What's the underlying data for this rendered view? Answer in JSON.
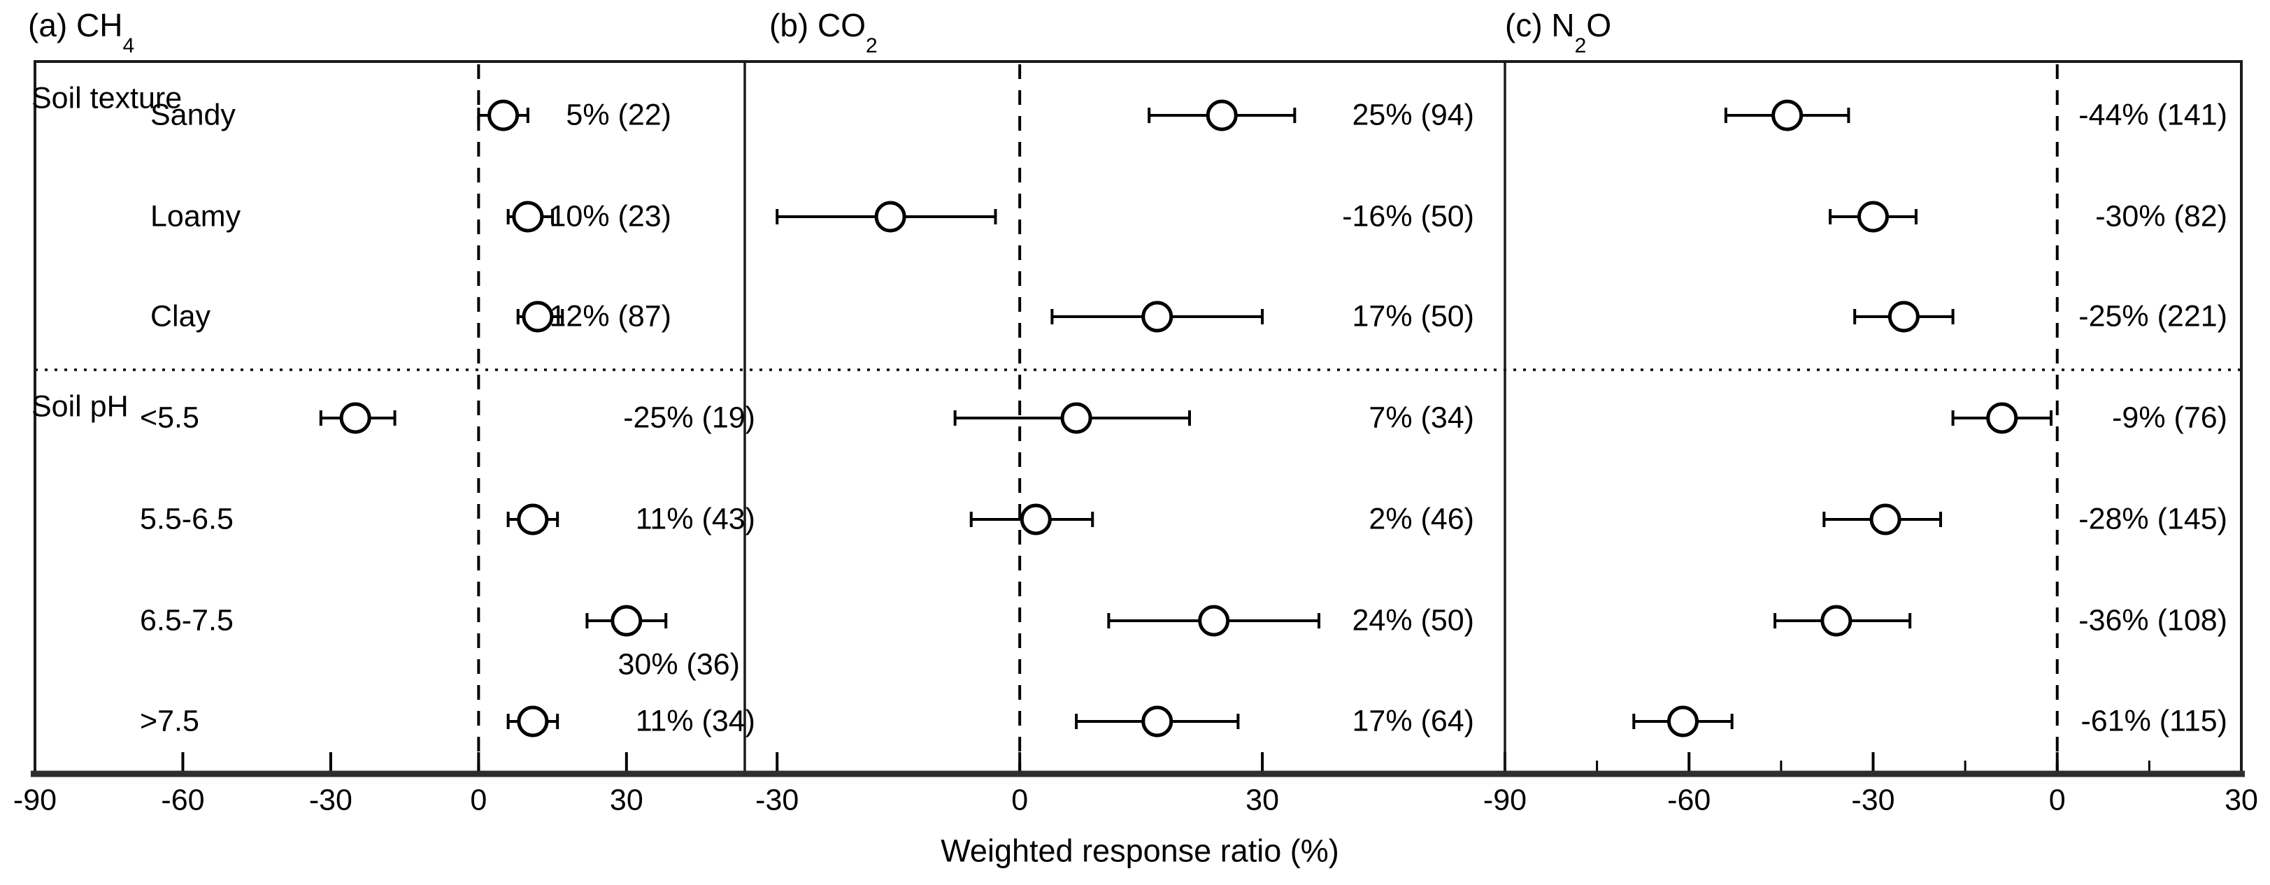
{
  "figure": {
    "xlabel": "Weighted response ratio (%)",
    "group_headers": [
      {
        "label": "Soil texture"
      },
      {
        "label": "Soil pH"
      }
    ]
  },
  "chart_data": [
    {
      "type": "scatter",
      "subtype": "forest-plot",
      "panel_label": "(a)",
      "gas": "CH4",
      "title_prefix": "(a) CH",
      "title_sub": "4",
      "title_suffix": "",
      "xlabel": "Weighted response ratio (%)",
      "xlim": [
        -90,
        54
      ],
      "ticks": [
        -90,
        -60,
        -30,
        0,
        30
      ],
      "minor_ticks": [],
      "zero_line": 0,
      "grid": false,
      "categories": [
        "Sandy",
        "Loamy",
        "Clay",
        "<5.5",
        "5.5-6.5",
        "6.5-7.5",
        ">7.5"
      ],
      "rows": [
        {
          "category": "Sandy",
          "group": "Soil texture",
          "value": 5,
          "ci": [
            0,
            10
          ],
          "n": 22,
          "label": "5% (22)"
        },
        {
          "category": "Loamy",
          "group": "Soil texture",
          "value": 10,
          "ci": [
            6,
            15
          ],
          "n": 23,
          "label": "10% (23)"
        },
        {
          "category": "Clay",
          "group": "Soil texture",
          "value": 12,
          "ci": [
            8,
            17
          ],
          "n": 87,
          "label": "12% (87)"
        },
        {
          "category": "<5.5",
          "group": "Soil pH",
          "value": -25,
          "ci": [
            -32,
            -17
          ],
          "n": 19,
          "label": "-25% (19)"
        },
        {
          "category": "5.5-6.5",
          "group": "Soil pH",
          "value": 11,
          "ci": [
            6,
            16
          ],
          "n": 43,
          "label": "11% (43)"
        },
        {
          "category": "6.5-7.5",
          "group": "Soil pH",
          "value": 30,
          "ci": [
            22,
            38
          ],
          "n": 36,
          "label": "30% (36)",
          "label_below": true
        },
        {
          "category": ">7.5",
          "group": "Soil pH",
          "value": 11,
          "ci": [
            6,
            16
          ],
          "n": 34,
          "label": "11% (34)"
        }
      ]
    },
    {
      "type": "scatter",
      "subtype": "forest-plot",
      "panel_label": "(b)",
      "gas": "CO2",
      "title_prefix": "(b) CO",
      "title_sub": "2",
      "title_suffix": "",
      "xlabel": "Weighted response ratio (%)",
      "xlim": [
        -34,
        60
      ],
      "ticks": [
        -30,
        0,
        30
      ],
      "minor_ticks": [],
      "zero_line": 0,
      "grid": false,
      "categories": [
        "Sandy",
        "Loamy",
        "Clay",
        "<5.5",
        "5.5-6.5",
        "6.5-7.5",
        ">7.5"
      ],
      "rows": [
        {
          "category": "Sandy",
          "group": "Soil texture",
          "value": 25,
          "ci": [
            16,
            34
          ],
          "n": 94,
          "label": "25% (94)"
        },
        {
          "category": "Loamy",
          "group": "Soil texture",
          "value": -16,
          "ci": [
            -30,
            -3
          ],
          "n": 50,
          "label": "-16% (50)"
        },
        {
          "category": "Clay",
          "group": "Soil texture",
          "value": 17,
          "ci": [
            4,
            30
          ],
          "n": 50,
          "label": "17% (50)"
        },
        {
          "category": "<5.5",
          "group": "Soil pH",
          "value": 7,
          "ci": [
            -8,
            21
          ],
          "n": 34,
          "label": "7% (34)"
        },
        {
          "category": "5.5-6.5",
          "group": "Soil pH",
          "value": 2,
          "ci": [
            -6,
            9
          ],
          "n": 46,
          "label": "2% (46)"
        },
        {
          "category": "6.5-7.5",
          "group": "Soil pH",
          "value": 24,
          "ci": [
            11,
            37
          ],
          "n": 50,
          "label": "24% (50)"
        },
        {
          "category": ">7.5",
          "group": "Soil pH",
          "value": 17,
          "ci": [
            7,
            27
          ],
          "n": 64,
          "label": "17% (64)"
        }
      ]
    },
    {
      "type": "scatter",
      "subtype": "forest-plot",
      "panel_label": "(c)",
      "gas": "N2O",
      "title_prefix": "(c) N",
      "title_sub": "2",
      "title_suffix": "O",
      "xlabel": "Weighted response ratio (%)",
      "xlim": [
        -90,
        30
      ],
      "ticks": [
        -90,
        -60,
        -30,
        0,
        30
      ],
      "minor_ticks": [
        -75,
        -45,
        -15,
        15
      ],
      "zero_line": 0,
      "grid": false,
      "categories": [
        "Sandy",
        "Loamy",
        "Clay",
        "<5.5",
        "5.5-6.5",
        "6.5-7.5",
        ">7.5"
      ],
      "rows": [
        {
          "category": "Sandy",
          "group": "Soil texture",
          "value": -44,
          "ci": [
            -54,
            -34
          ],
          "n": 141,
          "label": "-44% (141)"
        },
        {
          "category": "Loamy",
          "group": "Soil texture",
          "value": -30,
          "ci": [
            -37,
            -23
          ],
          "n": 82,
          "label": "-30% (82)"
        },
        {
          "category": "Clay",
          "group": "Soil texture",
          "value": -25,
          "ci": [
            -33,
            -17
          ],
          "n": 221,
          "label": "-25% (221)"
        },
        {
          "category": "<5.5",
          "group": "Soil pH",
          "value": -9,
          "ci": [
            -17,
            -1
          ],
          "n": 76,
          "label": "-9% (76)"
        },
        {
          "category": "5.5-6.5",
          "group": "Soil pH",
          "value": -28,
          "ci": [
            -38,
            -19
          ],
          "n": 145,
          "label": "-28% (145)"
        },
        {
          "category": "6.5-7.5",
          "group": "Soil pH",
          "value": -36,
          "ci": [
            -46,
            -24
          ],
          "n": 108,
          "label": "-36% (108)"
        },
        {
          "category": ">7.5",
          "group": "Soil pH",
          "value": -61,
          "ci": [
            -69,
            -53
          ],
          "n": 115,
          "label": "-61% (115)"
        }
      ]
    }
  ]
}
